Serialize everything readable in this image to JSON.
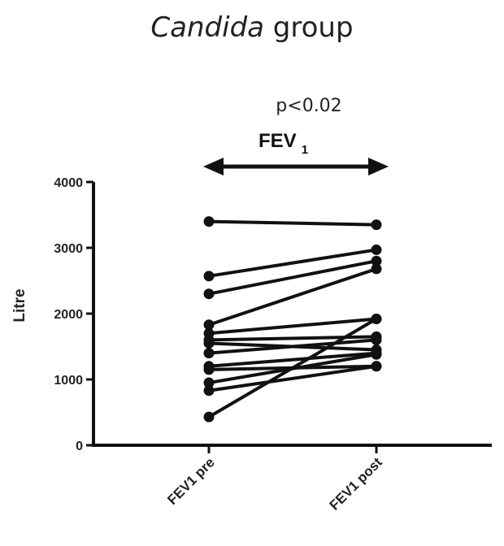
{
  "title": {
    "italic": "Candida",
    "rest": " group"
  },
  "annotation": {
    "pvalue": "p<0.02",
    "label_main": "FEV",
    "label_sub": "1"
  },
  "chart_data": {
    "type": "line",
    "title": "Candida group",
    "ylabel": "Litre",
    "xlabel": "",
    "categories": [
      "FEV1 pre",
      "FEV1 post"
    ],
    "ylim": [
      0,
      4000
    ],
    "yticks": [
      0,
      1000,
      2000,
      3000,
      4000
    ],
    "grid": false,
    "series": [
      {
        "values": [
          3400,
          3350
        ]
      },
      {
        "values": [
          2570,
          2970
        ]
      },
      {
        "values": [
          2300,
          2800
        ]
      },
      {
        "values": [
          1830,
          2680
        ]
      },
      {
        "values": [
          1700,
          1920
        ]
      },
      {
        "values": [
          1600,
          1650
        ]
      },
      {
        "values": [
          1550,
          1450
        ]
      },
      {
        "values": [
          1400,
          1600
        ]
      },
      {
        "values": [
          1200,
          1400
        ]
      },
      {
        "values": [
          1150,
          1200
        ]
      },
      {
        "values": [
          950,
          1380
        ]
      },
      {
        "values": [
          830,
          1200
        ]
      },
      {
        "values": [
          430,
          1920
        ]
      }
    ],
    "colors": {
      "line": "#111111",
      "marker": "#111111",
      "axis": "#111111"
    }
  }
}
